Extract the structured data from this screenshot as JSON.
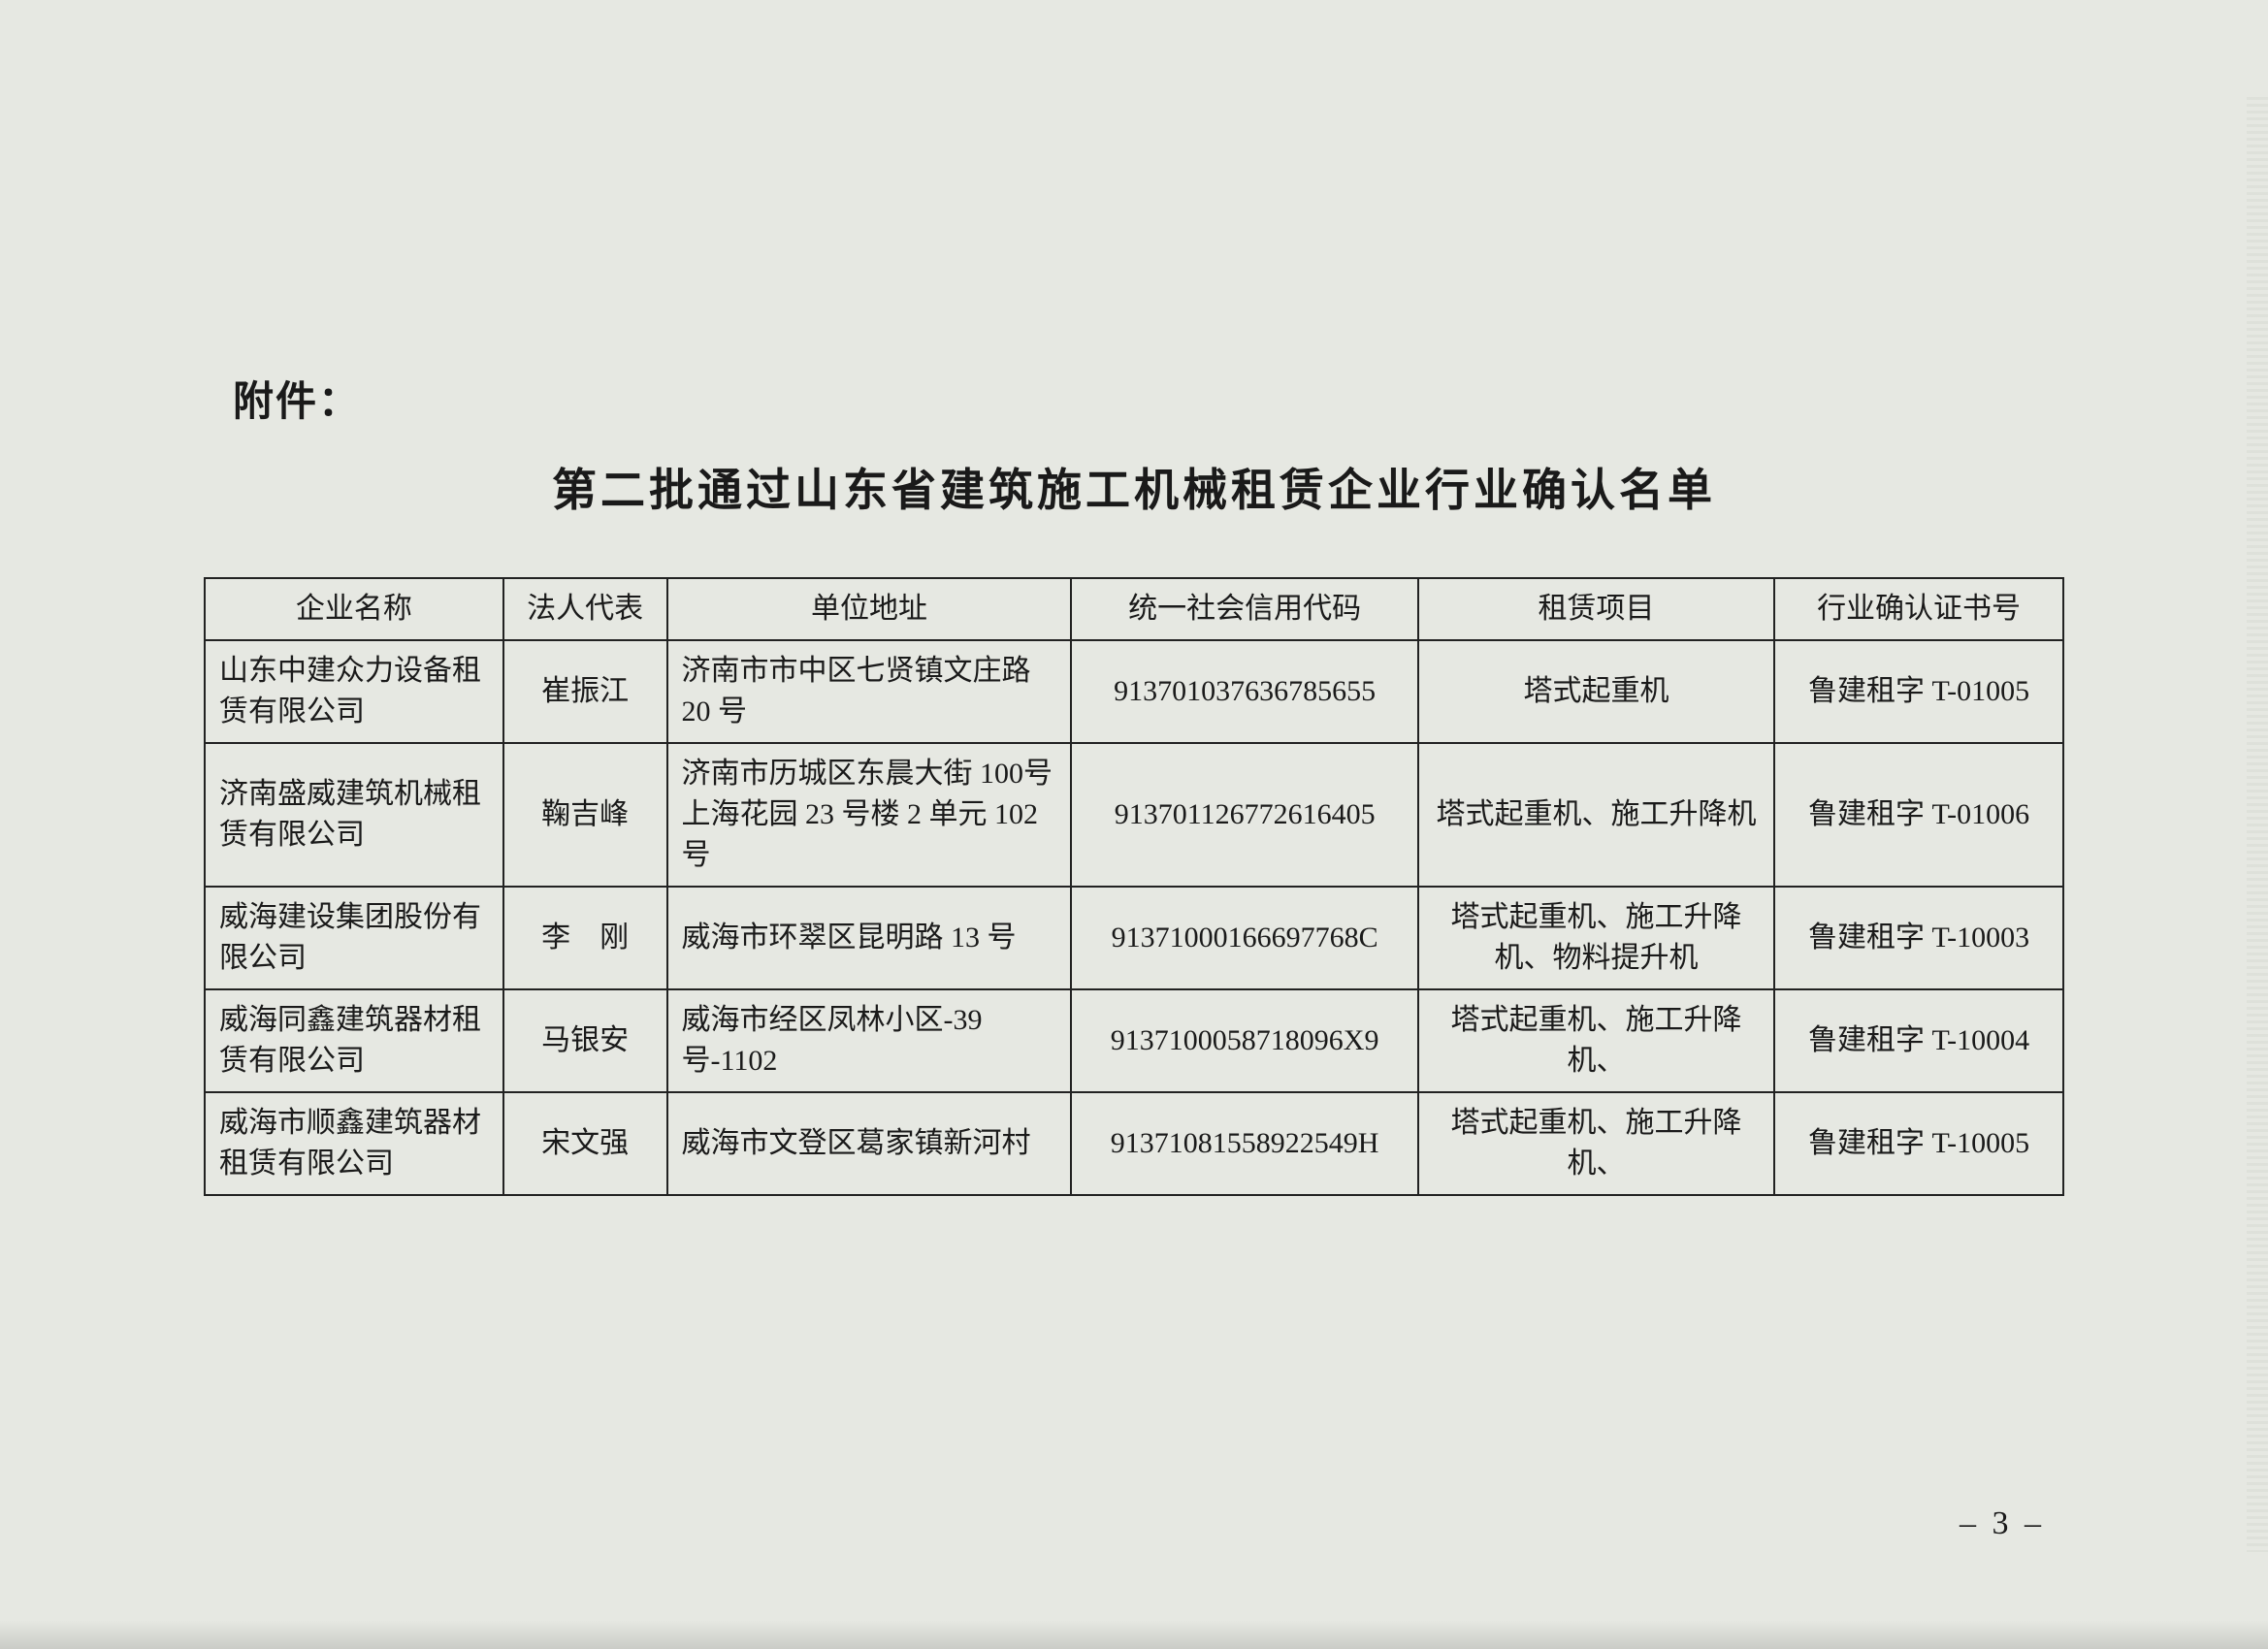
{
  "page": {
    "attachment_label": "附件：",
    "title": "第二批通过山东省建筑施工机械租赁企业行业确认名单",
    "page_number": "– 3 –",
    "background_color": "#e6e8e2",
    "text_color": "#1a1a1a",
    "border_color": "#222222",
    "title_fontsize": 46,
    "body_fontsize": 30
  },
  "table": {
    "columns": [
      {
        "key": "company",
        "label": "企业名称",
        "width_pct": 15.5,
        "align": "left"
      },
      {
        "key": "legal",
        "label": "法人代表",
        "width_pct": 8.5,
        "align": "center"
      },
      {
        "key": "address",
        "label": "单位地址",
        "width_pct": 21,
        "align": "left"
      },
      {
        "key": "code",
        "label": "统一社会信用代码",
        "width_pct": 18,
        "align": "center"
      },
      {
        "key": "project",
        "label": "租赁项目",
        "width_pct": 18.5,
        "align": "center"
      },
      {
        "key": "cert",
        "label": "行业确认证书号",
        "width_pct": 15,
        "align": "center"
      }
    ],
    "rows": [
      {
        "company": "山东中建众力设备租赁有限公司",
        "legal": "崔振江",
        "address": "济南市市中区七贤镇文庄路20 号",
        "code": "913701037636785655",
        "project": "塔式起重机",
        "cert": "鲁建租字 T-01005"
      },
      {
        "company": "济南盛威建筑机械租赁有限公司",
        "legal": "鞠吉峰",
        "address": "济南市历城区东晨大街 100号上海花园 23 号楼 2 单元 102号",
        "code": "913701126772616405",
        "project": "塔式起重机、施工升降机",
        "cert": "鲁建租字 T-01006"
      },
      {
        "company": "威海建设集团股份有限公司",
        "legal": "李　刚",
        "address": "威海市环翠区昆明路 13 号",
        "code": "91371000166697768C",
        "project": "塔式起重机、施工升降机、物料提升机",
        "cert": "鲁建租字 T-10003"
      },
      {
        "company": "威海同鑫建筑器材租赁有限公司",
        "legal": "马银安",
        "address": "威海市经区凤林小区-39 号-1102",
        "code": "9137100058718096X9",
        "project": "塔式起重机、施工升降机、",
        "cert": "鲁建租字 T-10004"
      },
      {
        "company": "威海市顺鑫建筑器材租赁有限公司",
        "legal": "宋文强",
        "address": "威海市文登区葛家镇新河村",
        "code": "91371081558922549H",
        "project": "塔式起重机、施工升降机、",
        "cert": "鲁建租字 T-10005"
      }
    ]
  }
}
